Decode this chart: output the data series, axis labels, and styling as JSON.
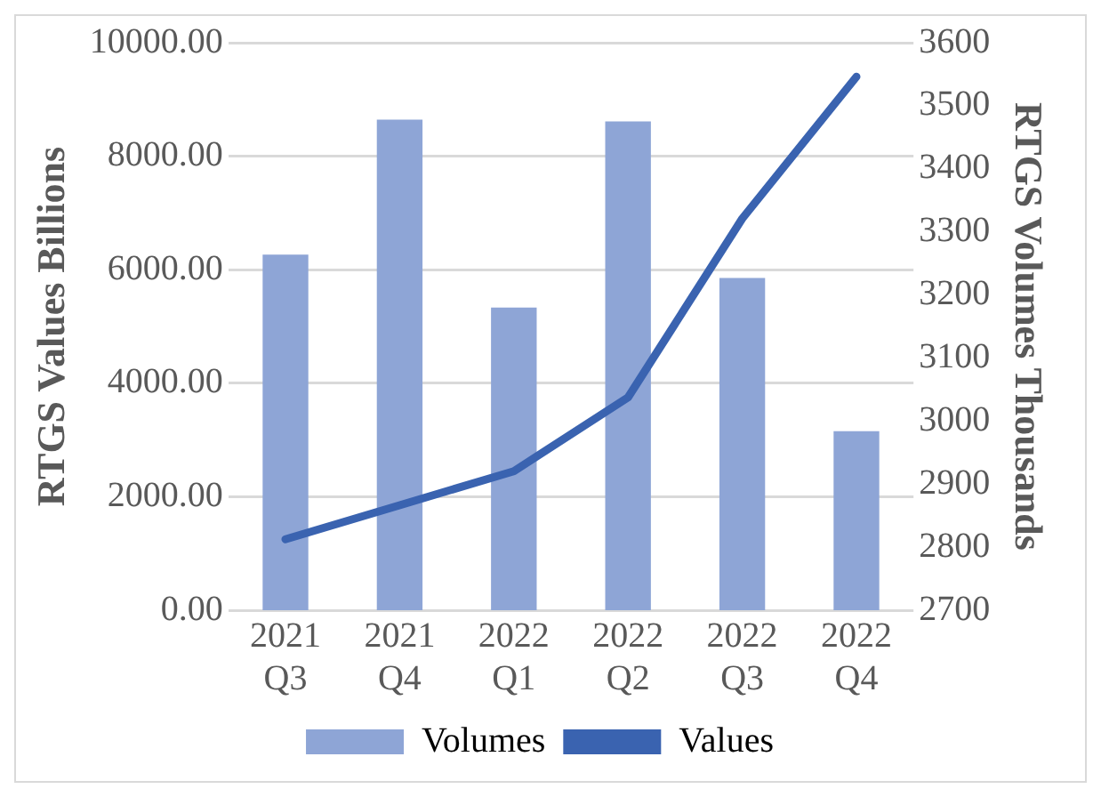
{
  "chart_data": {
    "type": "bar",
    "categories": [
      "2021 Q3",
      "2021 Q4",
      "2022 Q1",
      "2022 Q2",
      "2022 Q3",
      "2022 Q4"
    ],
    "series": [
      {
        "name": "Volumes",
        "axis": "y2",
        "color": "#8ea5d6",
        "values": [
          3264,
          3478,
          3180,
          3475,
          3227,
          2984
        ]
      },
      {
        "name": "Values",
        "type": "line",
        "color": "#3a63b0",
        "values": [
          1250,
          1850,
          2450,
          3750,
          6900,
          9400
        ]
      }
    ],
    "ylabel": "RTGS Values Billions",
    "y2label": "RTGS Volumes Thousands",
    "ylim": [
      0,
      10000
    ],
    "yticks": [
      {
        "value": 0,
        "label": "0.00"
      },
      {
        "value": 2000,
        "label": "2000.00"
      },
      {
        "value": 4000,
        "label": "4000.00"
      },
      {
        "value": 6000,
        "label": "6000.00"
      },
      {
        "value": 8000,
        "label": "8000.00"
      },
      {
        "value": 10000,
        "label": "10000.00"
      }
    ],
    "y2lim": [
      2700,
      3600
    ],
    "y2ticks": [
      2700,
      2800,
      2900,
      3000,
      3100,
      3200,
      3300,
      3400,
      3500,
      3600
    ],
    "grid": "y",
    "legend": "bottom",
    "marker": "none",
    "line_style": "solid"
  }
}
